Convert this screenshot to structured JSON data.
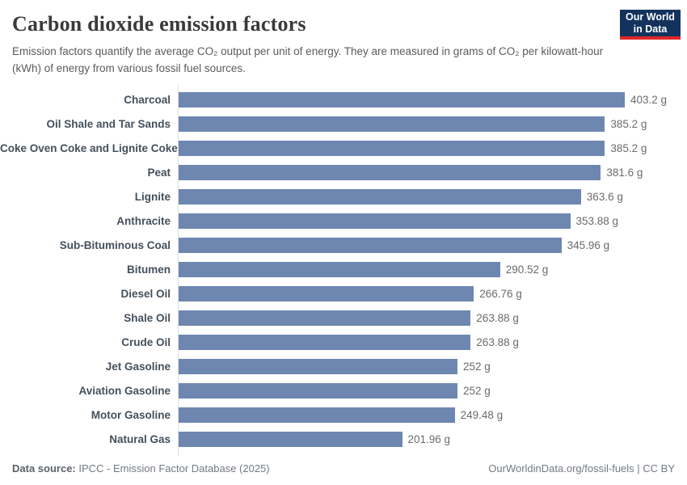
{
  "header": {
    "title": "Carbon dioxide emission factors",
    "subtitle": "Emission factors quantify the average CO₂ output per unit of energy. They are measured in grams of CO₂ per kilowatt-hour (kWh) of energy from various fossil fuel sources.",
    "logo": {
      "line1": "Our World",
      "line2": "in Data"
    }
  },
  "chart_data": {
    "type": "bar",
    "orientation": "horizontal",
    "title": "Carbon dioxide emission factors",
    "xlabel": "",
    "ylabel": "",
    "unit": "g",
    "xlim": [
      0,
      403.2
    ],
    "grid": false,
    "legend": "none",
    "categories": [
      "Charcoal",
      "Oil Shale and Tar Sands",
      "Coke Oven Coke and Lignite Coke",
      "Peat",
      "Lignite",
      "Anthracite",
      "Sub-Bituminous Coal",
      "Bitumen",
      "Diesel Oil",
      "Shale Oil",
      "Crude Oil",
      "Jet Gasoline",
      "Aviation Gasoline",
      "Motor Gasoline",
      "Natural Gas"
    ],
    "values": [
      403.2,
      385.2,
      385.2,
      381.6,
      363.6,
      353.88,
      345.96,
      290.52,
      266.76,
      263.88,
      263.88,
      252,
      252,
      249.48,
      201.96
    ],
    "value_labels": [
      "403.2 g",
      "385.2 g",
      "385.2 g",
      "381.6 g",
      "363.6 g",
      "353.88 g",
      "345.96 g",
      "290.52 g",
      "266.76 g",
      "263.88 g",
      "263.88 g",
      "252 g",
      "252 g",
      "249.48 g",
      "201.96 g"
    ]
  },
  "footer": {
    "source_label": "Data source:",
    "source_text": " IPCC - Emission Factor Database (2025)",
    "link_text": "OurWorldinData.org/fossil-fuels | CC BY"
  },
  "colors": {
    "bar": "#6d87b0",
    "axis_line": "#d9dee4",
    "title": "#3a3a3a",
    "subtitle": "#5b5b5b",
    "category_label": "#44505c",
    "value_label": "#6b6b6b",
    "footer_text": "#747a80",
    "logo_background": "#13335d",
    "logo_accent": "#e0262a"
  }
}
